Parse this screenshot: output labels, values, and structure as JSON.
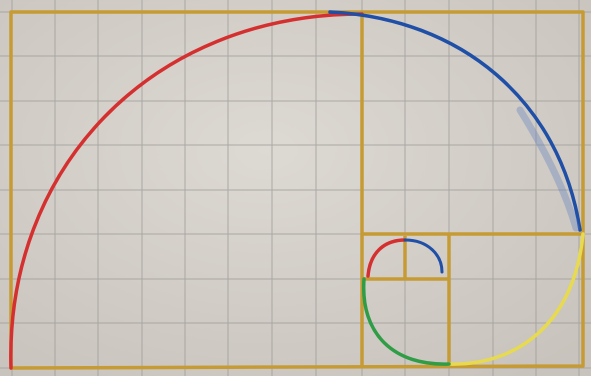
{
  "photo": {
    "subject": "fibonacci-spiral-sketch",
    "grid_columns": 13,
    "grid_rows": 8,
    "nested_square_sizes": [
      8,
      5,
      3,
      2,
      1,
      1
    ],
    "colors": {
      "paper": "#d3cfc9",
      "paper_light": "#ddd9d3",
      "grid_line": "#9c9a97",
      "frame_ochre": "#c69b34",
      "arc_red": "#d53030",
      "arc_blue": "#1f4fa6",
      "arc_yellow": "#e8da4f",
      "arc_green": "#2f9d46"
    }
  }
}
